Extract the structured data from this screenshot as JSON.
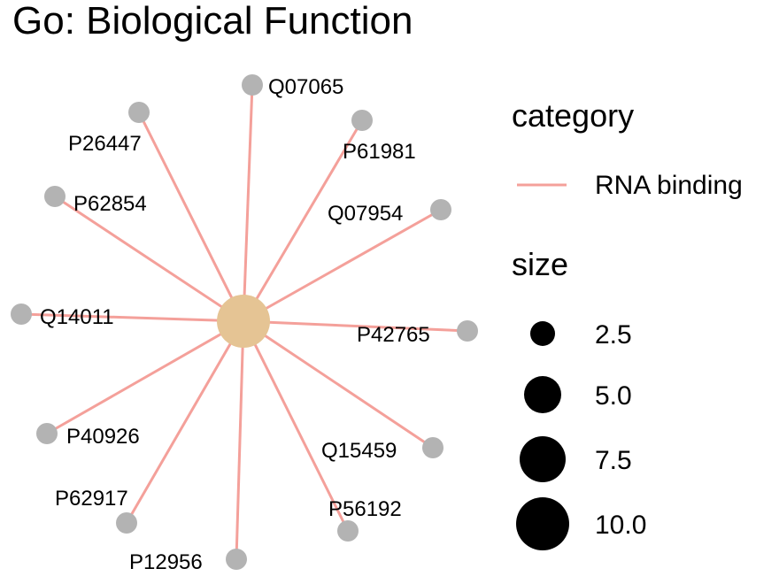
{
  "chart_data": {
    "type": "network",
    "title": "Go: Biological Function",
    "center": {
      "category": "RNA binding",
      "size": 10.0
    },
    "nodes": [
      "Q07065",
      "P26447",
      "P61981",
      "P62854",
      "Q07954",
      "Q14011",
      "P42765",
      "P40926",
      "Q15459",
      "P62917",
      "P56192",
      "P12956"
    ],
    "edges": [
      {
        "from": "RNA binding",
        "to": "Q07065"
      },
      {
        "from": "RNA binding",
        "to": "P26447"
      },
      {
        "from": "RNA binding",
        "to": "P61981"
      },
      {
        "from": "RNA binding",
        "to": "P62854"
      },
      {
        "from": "RNA binding",
        "to": "Q07954"
      },
      {
        "from": "RNA binding",
        "to": "Q14011"
      },
      {
        "from": "RNA binding",
        "to": "P42765"
      },
      {
        "from": "RNA binding",
        "to": "P40926"
      },
      {
        "from": "RNA binding",
        "to": "Q15459"
      },
      {
        "from": "RNA binding",
        "to": "P62917"
      },
      {
        "from": "RNA binding",
        "to": "P56192"
      },
      {
        "from": "RNA binding",
        "to": "P12956"
      }
    ],
    "legend": {
      "placement": "right",
      "category_title": "category",
      "category_items": [
        {
          "label": "RNA binding",
          "color": "#F4A09A"
        }
      ],
      "size_title": "size",
      "size_items": [
        "2.5",
        "5.0",
        "7.5",
        "10.0"
      ],
      "size_values": [
        2.5,
        5.0,
        7.5,
        10.0
      ]
    },
    "colors": {
      "edge": "#F4A09A",
      "center_node": "#E5C494",
      "leaf_node": "#B3B3B3",
      "legend_dot": "#000000"
    }
  }
}
